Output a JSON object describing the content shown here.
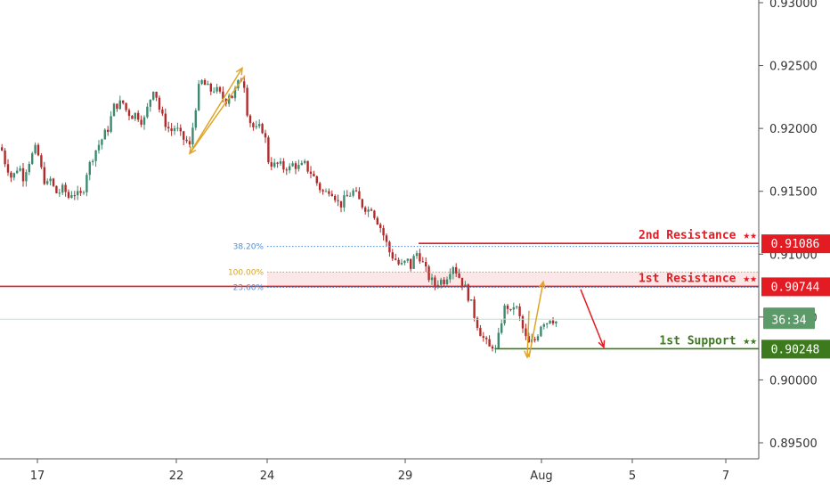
{
  "chart_data": {
    "type": "candlestick",
    "y_axis": {
      "ticks": [
        "0.93000",
        "0.92500",
        "0.92000",
        "0.91500",
        "0.91000",
        "0.90500",
        "0.90000",
        "0.89500"
      ],
      "tick_values": [
        0.93,
        0.925,
        0.92,
        0.915,
        0.91,
        0.905,
        0.9,
        0.895
      ],
      "range": [
        0.8934,
        0.93
      ]
    },
    "x_axis": {
      "ticks": [
        "17",
        "22",
        "24",
        "29",
        "Aug",
        "5",
        "7"
      ]
    },
    "price_path": [
      [
        0,
        0.9185
      ],
      [
        2,
        0.918
      ],
      [
        5,
        0.9172
      ],
      [
        8,
        0.9168
      ],
      [
        12,
        0.916
      ],
      [
        16,
        0.9165
      ],
      [
        20,
        0.9172
      ],
      [
        24,
        0.916
      ],
      [
        28,
        0.9168
      ],
      [
        32,
        0.9175
      ],
      [
        36,
        0.918
      ],
      [
        40,
        0.9185
      ],
      [
        44,
        0.917
      ],
      [
        48,
        0.916
      ],
      [
        52,
        0.9155
      ],
      [
        56,
        0.916
      ],
      [
        60,
        0.915
      ],
      [
        64,
        0.9148
      ],
      [
        68,
        0.9152
      ],
      [
        72,
        0.915
      ],
      [
        76,
        0.9145
      ],
      [
        80,
        0.915
      ],
      [
        84,
        0.9148
      ],
      [
        88,
        0.9145
      ],
      [
        92,
        0.915
      ],
      [
        96,
        0.9165
      ],
      [
        100,
        0.9172
      ],
      [
        104,
        0.918
      ],
      [
        108,
        0.9185
      ],
      [
        112,
        0.919
      ],
      [
        116,
        0.9195
      ],
      [
        120,
        0.92
      ],
      [
        124,
        0.921
      ],
      [
        128,
        0.922
      ],
      [
        132,
        0.9218
      ],
      [
        136,
        0.9222
      ],
      [
        140,
        0.9215
      ],
      [
        144,
        0.9212
      ],
      [
        148,
        0.921
      ],
      [
        152,
        0.9212
      ],
      [
        156,
        0.9208
      ],
      [
        160,
        0.9205
      ],
      [
        164,
        0.9215
      ],
      [
        168,
        0.9225
      ],
      [
        172,
        0.9235
      ],
      [
        176,
        0.922
      ],
      [
        180,
        0.921
      ],
      [
        184,
        0.9205
      ],
      [
        188,
        0.92
      ],
      [
        192,
        0.9198
      ],
      [
        196,
        0.9202
      ],
      [
        200,
        0.9195
      ],
      [
        204,
        0.9192
      ],
      [
        208,
        0.919
      ],
      [
        212,
        0.9185
      ],
      [
        216,
        0.9205
      ],
      [
        220,
        0.9225
      ],
      [
        224,
        0.9238
      ],
      [
        228,
        0.9235
      ],
      [
        232,
        0.9232
      ],
      [
        236,
        0.923
      ],
      [
        240,
        0.9232
      ],
      [
        244,
        0.9228
      ],
      [
        248,
        0.9225
      ],
      [
        252,
        0.9222
      ],
      [
        256,
        0.9228
      ],
      [
        260,
        0.9225
      ],
      [
        264,
        0.9232
      ],
      [
        268,
        0.9238
      ],
      [
        272,
        0.9242
      ],
      [
        276,
        0.9215
      ],
      [
        280,
        0.9205
      ],
      [
        284,
        0.92
      ],
      [
        288,
        0.9198
      ],
      [
        292,
        0.9202
      ],
      [
        296,
        0.9195
      ],
      [
        300,
        0.9175
      ],
      [
        304,
        0.9172
      ],
      [
        308,
        0.917
      ],
      [
        312,
        0.9172
      ],
      [
        316,
        0.9168
      ],
      [
        320,
        0.917
      ],
      [
        324,
        0.9168
      ],
      [
        328,
        0.9172
      ],
      [
        332,
        0.917
      ],
      [
        336,
        0.9168
      ],
      [
        340,
        0.9172
      ],
      [
        344,
        0.9168
      ],
      [
        348,
        0.9165
      ],
      [
        352,
        0.916
      ],
      [
        356,
        0.9155
      ],
      [
        360,
        0.915
      ],
      [
        364,
        0.9148
      ],
      [
        368,
        0.9152
      ],
      [
        372,
        0.915
      ],
      [
        376,
        0.9145
      ],
      [
        380,
        0.9138
      ],
      [
        384,
        0.9142
      ],
      [
        388,
        0.9145
      ],
      [
        392,
        0.9148
      ],
      [
        396,
        0.915
      ],
      [
        400,
        0.9145
      ],
      [
        404,
        0.914
      ],
      [
        408,
        0.9138
      ],
      [
        412,
        0.9135
      ],
      [
        416,
        0.9138
      ],
      [
        420,
        0.913
      ],
      [
        424,
        0.9125
      ],
      [
        428,
        0.9118
      ],
      [
        432,
        0.911
      ],
      [
        436,
        0.9102
      ],
      [
        440,
        0.9098
      ],
      [
        444,
        0.9095
      ],
      [
        448,
        0.909
      ],
      [
        452,
        0.9092
      ],
      [
        456,
        0.9095
      ],
      [
        460,
        0.909
      ],
      [
        464,
        0.9098
      ],
      [
        468,
        0.9102
      ],
      [
        472,
        0.9095
      ],
      [
        476,
        0.9088
      ],
      [
        480,
        0.9082
      ],
      [
        484,
        0.9078
      ],
      [
        488,
        0.9075
      ],
      [
        492,
        0.908
      ],
      [
        496,
        0.9078
      ],
      [
        500,
        0.9082
      ],
      [
        504,
        0.9088
      ],
      [
        508,
        0.9092
      ],
      [
        512,
        0.9085
      ],
      [
        516,
        0.908
      ],
      [
        520,
        0.9075
      ],
      [
        524,
        0.9068
      ],
      [
        528,
        0.906
      ],
      [
        532,
        0.905
      ],
      [
        536,
        0.9042
      ],
      [
        540,
        0.9035
      ],
      [
        544,
        0.903
      ],
      [
        548,
        0.9025
      ],
      [
        552,
        0.9028
      ],
      [
        556,
        0.9022
      ],
      [
        560,
        0.904
      ],
      [
        564,
        0.9055
      ],
      [
        568,
        0.906
      ],
      [
        572,
        0.9052
      ],
      [
        576,
        0.906
      ],
      [
        580,
        0.9055
      ],
      [
        584,
        0.9045
      ],
      [
        588,
        0.9035
      ],
      [
        592,
        0.9028
      ],
      [
        596,
        0.903
      ],
      [
        600,
        0.9032
      ],
      [
        604,
        0.904
      ],
      [
        608,
        0.9048
      ],
      [
        612,
        0.9045
      ],
      [
        616,
        0.905
      ],
      [
        620,
        0.9048
      ],
      [
        624,
        0.9046
      ]
    ],
    "levels": [
      {
        "name": "2nd Resistance ★★",
        "value": 0.91086,
        "value_label": "0.91086",
        "color": "#e31b23",
        "x_from": 470
      },
      {
        "name": "1st Resistance ★★",
        "value": 0.90744,
        "value_label": "0.90744",
        "color": "#e31b23",
        "x_from": 0
      },
      {
        "name": "1st Support ★★",
        "value": 0.90248,
        "value_label": "0.90248",
        "color": "#3d7a1e",
        "x_from": 556
      }
    ],
    "fibonacci": [
      {
        "label": "38.20%",
        "value": 0.91061,
        "color": "#4a8fd6"
      },
      {
        "label": "100.00%",
        "value": 0.90858,
        "color": "#d6a22e"
      },
      {
        "label": "23.60%",
        "value": 0.90736,
        "color": "#4a8fd6"
      }
    ],
    "countdown": {
      "label": "36:34",
      "value": 0.90483,
      "color": "#5c9a6a"
    },
    "colors": {
      "bull": "#3d8a6e",
      "bear": "#b22b2b",
      "pattern": "#e0a428",
      "arrow": "#e31b23",
      "zone_fill": "#f8d7d7"
    }
  }
}
